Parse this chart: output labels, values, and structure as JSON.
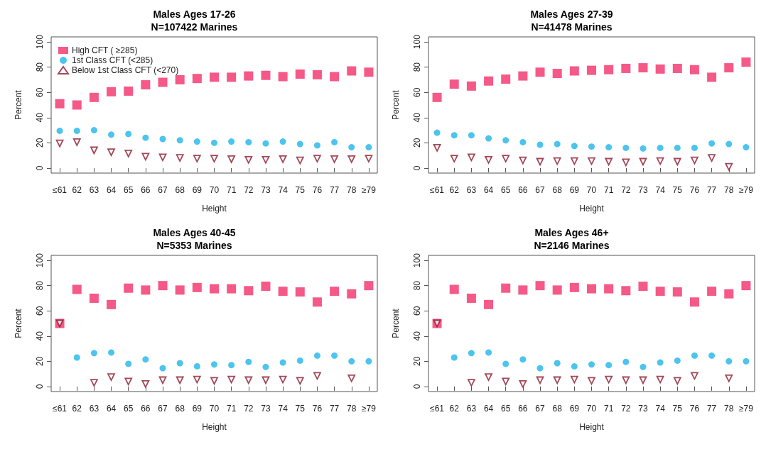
{
  "chart_data": [
    {
      "type": "scatter",
      "title": "Males Ages 17-26",
      "subtitle": "N=107422 Marines",
      "xlabel": "Height",
      "ylabel": "Percent",
      "categories": [
        "≤61",
        "62",
        "63",
        "64",
        "65",
        "66",
        "67",
        "68",
        "69",
        "70",
        "71",
        "72",
        "73",
        "74",
        "75",
        "76",
        "77",
        "78",
        "≥79"
      ],
      "ylim": [
        -4,
        104
      ],
      "yticks": [
        0,
        20,
        40,
        60,
        80,
        100
      ],
      "grid": false,
      "legend": "top left",
      "series": [
        {
          "name": "High CFT ( ≥285)",
          "color": "#f2306a",
          "marker": "square",
          "values": [
            51,
            50,
            56,
            60.5,
            61,
            66,
            68,
            70,
            71,
            72,
            72,
            73,
            73.5,
            72.5,
            74.5,
            74,
            72.5,
            77,
            76
          ]
        },
        {
          "name": "1st Class CFT (<285)",
          "color": "#1fb5ea",
          "marker": "circle",
          "values": [
            29.5,
            29.5,
            30,
            26.5,
            27,
            24,
            23,
            22,
            21,
            20,
            21,
            20.5,
            19.5,
            21,
            19,
            18,
            20.5,
            16.5,
            16.5
          ]
        },
        {
          "name": "Below 1st Class CFT (<270)",
          "color": "#8b1a2e",
          "marker": "triangle",
          "values": [
            19.5,
            20.5,
            14,
            12.5,
            11.5,
            9,
            8.5,
            8,
            7.5,
            7.5,
            7,
            6.5,
            6.5,
            7,
            6,
            7.5,
            7,
            7,
            7.5
          ]
        }
      ]
    },
    {
      "type": "scatter",
      "title": "Males Ages 27-39",
      "subtitle": "N=41478 Marines",
      "xlabel": "Height",
      "ylabel": "Percent",
      "categories": [
        "≤61",
        "62",
        "63",
        "64",
        "65",
        "66",
        "67",
        "68",
        "69",
        "70",
        "71",
        "72",
        "73",
        "74",
        "75",
        "76",
        "77",
        "78",
        "≥79"
      ],
      "ylim": [
        -4,
        104
      ],
      "yticks": [
        0,
        20,
        40,
        60,
        80,
        100
      ],
      "grid": false,
      "series": [
        {
          "color": "#f2306a",
          "marker": "square",
          "values": [
            56,
            66.5,
            65,
            69,
            70.5,
            73,
            76,
            75,
            77,
            77.5,
            78,
            79,
            79.5,
            78.5,
            79,
            78,
            72,
            79.5,
            84
          ]
        },
        {
          "color": "#1fb5ea",
          "marker": "circle",
          "values": [
            28,
            26,
            26,
            23.5,
            22,
            20.5,
            18.5,
            19,
            17.5,
            17,
            16.5,
            16,
            15.5,
            16,
            16,
            16,
            19.5,
            19,
            16.5
          ]
        },
        {
          "color": "#8b1a2e",
          "marker": "triangle",
          "values": [
            16,
            7.5,
            8.5,
            6.5,
            7.5,
            6,
            5,
            5.5,
            5.5,
            5.5,
            5,
            4.5,
            5,
            5.5,
            5,
            6,
            8,
            1,
            null
          ]
        }
      ]
    },
    {
      "type": "scatter",
      "title": "Males Ages 40-45",
      "subtitle": "N=5353 Marines",
      "xlabel": "Height",
      "ylabel": "Percent",
      "categories": [
        "≤61",
        "62",
        "63",
        "64",
        "65",
        "66",
        "67",
        "68",
        "69",
        "70",
        "71",
        "72",
        "73",
        "74",
        "75",
        "76",
        "77",
        "78",
        "≥79"
      ],
      "ylim": [
        -4,
        104
      ],
      "yticks": [
        0,
        20,
        40,
        60,
        80,
        100
      ],
      "grid": false,
      "series": [
        {
          "color": "#f2306a",
          "marker": "square",
          "values": [
            50,
            77,
            70,
            65,
            78,
            76.5,
            80,
            76.5,
            78.5,
            77.5,
            77.5,
            76,
            79.5,
            75.5,
            75,
            67,
            75.5,
            73.5,
            80
          ]
        },
        {
          "color": "#1fb5ea",
          "marker": "circle",
          "values": [
            null,
            23,
            26.5,
            27,
            18,
            21.5,
            14.5,
            18.5,
            16,
            17.5,
            17,
            19.5,
            15.5,
            19,
            20.5,
            24.5,
            24.5,
            20,
            20
          ]
        },
        {
          "color": "#8b1a2e",
          "marker": "triangle",
          "values": [
            50,
            null,
            3,
            7.5,
            4,
            2,
            5,
            5,
            5.5,
            4.5,
            5.5,
            5,
            5,
            5.5,
            4.5,
            8.5,
            null,
            6.5,
            null
          ]
        }
      ]
    },
    {
      "type": "scatter",
      "title": "Males Ages 46+",
      "subtitle": "N=2146 Marines",
      "xlabel": "Height",
      "ylabel": "Percent",
      "categories": [
        "≤61",
        "62",
        "63",
        "64",
        "65",
        "66",
        "67",
        "68",
        "69",
        "70",
        "71",
        "72",
        "73",
        "74",
        "75",
        "76",
        "77",
        "78",
        "≥79"
      ],
      "ylim": [
        -4,
        104
      ],
      "yticks": [
        0,
        20,
        40,
        60,
        80,
        100
      ],
      "grid": false,
      "series": [
        {
          "color": "#f2306a",
          "marker": "square",
          "values": [
            50,
            77,
            70,
            65,
            78,
            76.5,
            80,
            76.5,
            78.5,
            77.5,
            77.5,
            76,
            79.5,
            75.5,
            75,
            67,
            75.5,
            73.5,
            80
          ]
        },
        {
          "color": "#1fb5ea",
          "marker": "circle",
          "values": [
            null,
            23,
            26.5,
            27,
            18,
            21.5,
            14.5,
            18.5,
            16,
            17.5,
            17,
            19.5,
            15.5,
            19,
            20.5,
            24.5,
            24.5,
            20,
            20
          ]
        },
        {
          "color": "#8b1a2e",
          "marker": "triangle",
          "values": [
            50,
            null,
            3,
            7.5,
            4,
            2,
            5,
            5,
            5.5,
            4.5,
            5.5,
            5,
            5,
            5.5,
            4.5,
            8.5,
            null,
            6.5,
            null
          ]
        }
      ]
    }
  ]
}
